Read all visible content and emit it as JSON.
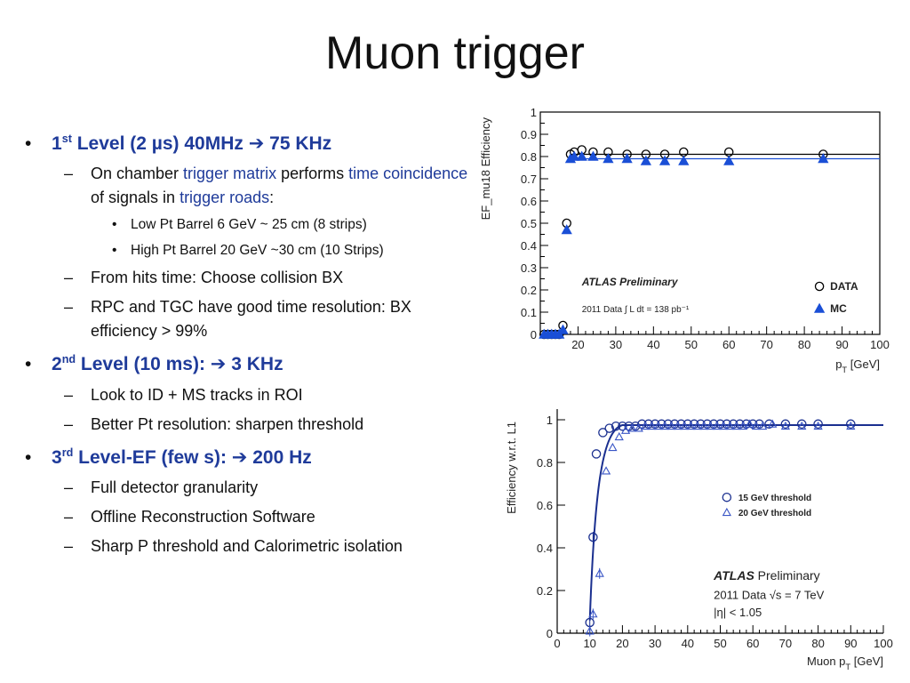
{
  "slide": {
    "title": "Muon trigger"
  },
  "bullets": {
    "b1": {
      "pre": "1",
      "sup": "st",
      "post": " Level (2 µs) 40MHz ➔ 75 KHz"
    },
    "b1_sub1": {
      "t1": "On chamber ",
      "t2": "trigger matrix",
      "t3": " performs ",
      "t4": "time coincidence",
      "t5": " of signals in ",
      "t6": "trigger roads",
      "t7": ":"
    },
    "b1_sub1_a": "Low Pt Barrel 6 GeV ~ 25 cm (8 strips)",
    "b1_sub1_b": "High Pt Barrel 20 GeV ~30 cm (10 Strips)",
    "b1_sub2": "From hits time: Choose collision BX",
    "b1_sub3": "RPC and TGC have good time resolution: BX efficiency > 99%",
    "b2": {
      "pre": "2",
      "sup": "nd",
      "post": " Level (10 ms): ➔ 3 KHz"
    },
    "b2_sub1": "Look to ID + MS tracks in ROI",
    "b2_sub2": "Better Pt resolution: sharpen threshold",
    "b3": {
      "pre": "3",
      "sup": "rd",
      "post": " Level-EF (few s): ➔ 200 Hz"
    },
    "b3_sub1": "Full detector granularity",
    "b3_sub2": "Offline Reconstruction Software",
    "b3_sub3": "Sharp P threshold and Calorimetric isolation"
  },
  "chart_data": [
    {
      "type": "scatter",
      "ylabel": "EF_mu18 Efficiency",
      "xlabel": "p_T [GeV]",
      "xlim": [
        10,
        100
      ],
      "ylim": [
        0,
        1
      ],
      "xticks": [
        20,
        30,
        40,
        50,
        60,
        70,
        80,
        90,
        100
      ],
      "yticks": [
        0,
        0.1,
        0.2,
        0.3,
        0.4,
        0.5,
        0.6,
        0.7,
        0.8,
        0.9,
        1
      ],
      "annotation_bold": "ATLAS Preliminary",
      "annotation_lumi": "2011 Data  ∫ L dt = 138 pb⁻¹",
      "legend_position": "bottom-right",
      "series": [
        {
          "name": "DATA",
          "marker": "open-circle",
          "color": "#000000",
          "x": [
            11,
            12,
            13,
            14,
            15,
            16,
            17,
            18,
            19,
            21,
            24,
            28,
            33,
            38,
            43,
            48,
            60,
            85
          ],
          "y": [
            0.0,
            0.0,
            0.0,
            0.0,
            0.0,
            0.04,
            0.5,
            0.81,
            0.82,
            0.83,
            0.82,
            0.82,
            0.81,
            0.81,
            0.81,
            0.82,
            0.82,
            0.81
          ]
        },
        {
          "name": "MC",
          "marker": "filled-triangle",
          "color": "#1a4fd6",
          "x": [
            11,
            12,
            13,
            14,
            15,
            16,
            17,
            18,
            19,
            21,
            24,
            28,
            33,
            38,
            43,
            48,
            60,
            85
          ],
          "y": [
            0.0,
            0.0,
            0.0,
            0.0,
            0.0,
            0.02,
            0.47,
            0.79,
            0.8,
            0.8,
            0.8,
            0.79,
            0.79,
            0.78,
            0.78,
            0.78,
            0.78,
            0.79
          ]
        }
      ]
    },
    {
      "type": "scatter",
      "ylabel": "Efficiency w.r.t. L1",
      "xlabel": "Muon p_T [GeV]",
      "xlim": [
        0,
        100
      ],
      "ylim": [
        0,
        1.05
      ],
      "xticks": [
        0,
        10,
        20,
        30,
        40,
        50,
        60,
        70,
        80,
        90,
        100
      ],
      "yticks": [
        0,
        0.2,
        0.4,
        0.6,
        0.8,
        1
      ],
      "annotation_bold": "ATLAS",
      "annotation_rest": "Preliminary",
      "annotation_data": "2011 Data   √s = 7 TeV",
      "annotation_eta": "|η| < 1.05",
      "legend_position": "top-right",
      "series": [
        {
          "name": "15 GeV threshold",
          "marker": "open-circle",
          "color": "#1a2f8f",
          "x": [
            10,
            11,
            12,
            14,
            16,
            18,
            20,
            22,
            24,
            26,
            28,
            30,
            32,
            34,
            36,
            38,
            40,
            42,
            44,
            46,
            48,
            50,
            52,
            54,
            56,
            58,
            60,
            62,
            65,
            70,
            75,
            80,
            90
          ],
          "y": [
            0.05,
            0.45,
            0.84,
            0.94,
            0.96,
            0.97,
            0.97,
            0.97,
            0.97,
            0.98,
            0.98,
            0.98,
            0.98,
            0.98,
            0.98,
            0.98,
            0.98,
            0.98,
            0.98,
            0.98,
            0.98,
            0.98,
            0.98,
            0.98,
            0.98,
            0.98,
            0.98,
            0.98,
            0.98,
            0.98,
            0.98,
            0.98,
            0.98
          ]
        },
        {
          "name": "20 GeV threshold",
          "marker": "open-triangle",
          "color": "#3a56c6",
          "x": [
            10,
            11,
            13,
            15,
            17,
            19,
            21,
            23,
            25,
            27,
            29,
            31,
            33,
            35,
            37,
            39,
            41,
            43,
            45,
            47,
            49,
            51,
            53,
            55,
            57,
            59,
            61,
            63,
            66,
            70,
            75,
            80,
            90
          ],
          "y": [
            0.01,
            0.09,
            0.28,
            0.76,
            0.87,
            0.92,
            0.95,
            0.96,
            0.96,
            0.97,
            0.97,
            0.97,
            0.97,
            0.97,
            0.97,
            0.97,
            0.97,
            0.97,
            0.97,
            0.97,
            0.97,
            0.97,
            0.97,
            0.97,
            0.97,
            0.98,
            0.97,
            0.97,
            0.98,
            0.97,
            0.97,
            0.97,
            0.97
          ]
        }
      ]
    }
  ]
}
